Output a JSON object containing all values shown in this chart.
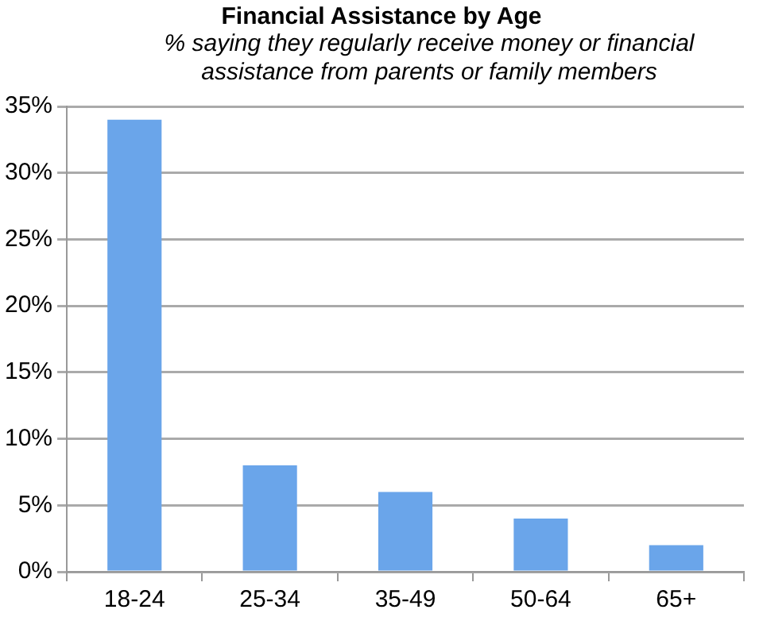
{
  "chart_data": {
    "type": "bar",
    "title": "Financial Assistance by Age",
    "subtitle": "% saying they regularly receive money or financial assistance from parents or family members",
    "categories": [
      "18-24",
      "25-34",
      "35-49",
      "50-64",
      "65+"
    ],
    "values": [
      34,
      8,
      6,
      4,
      2
    ],
    "color": "#6aa5ea",
    "ylim": [
      0,
      35
    ],
    "yticks": [
      {
        "value": 0,
        "label": "0%"
      },
      {
        "value": 5,
        "label": "5%"
      },
      {
        "value": 10,
        "label": "10%"
      },
      {
        "value": 15,
        "label": "15%"
      },
      {
        "value": 20,
        "label": "20%"
      },
      {
        "value": 25,
        "label": "25%"
      },
      {
        "value": 30,
        "label": "30%"
      },
      {
        "value": 35,
        "label": "35%"
      }
    ],
    "grid": "y",
    "legend": false
  }
}
